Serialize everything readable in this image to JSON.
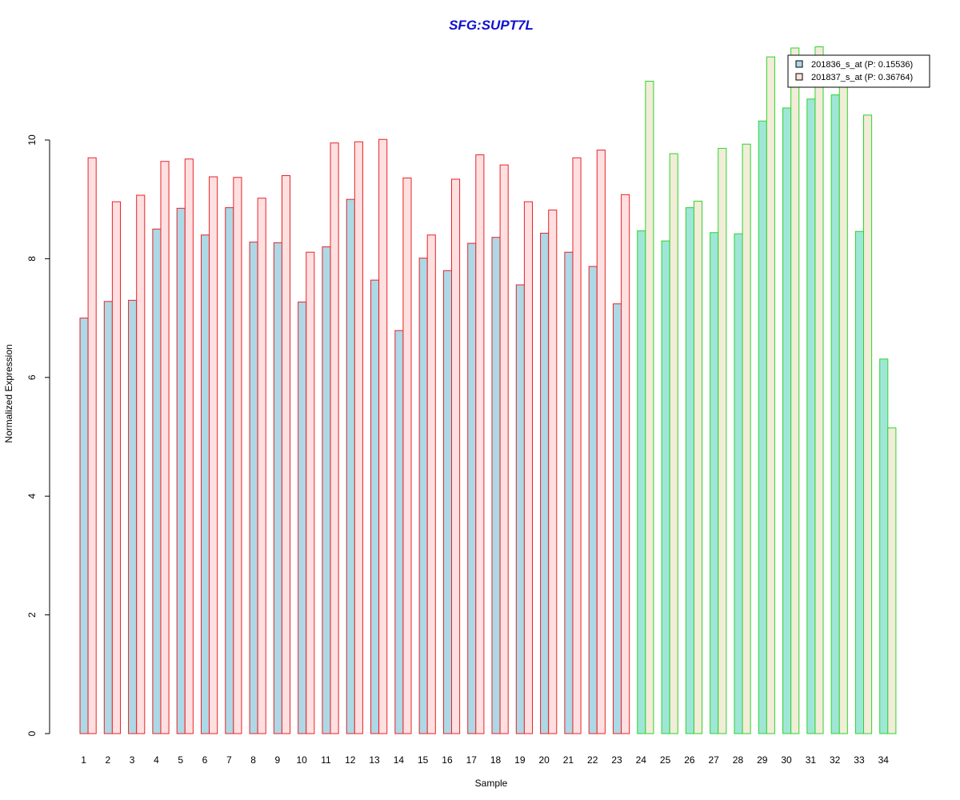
{
  "chart_data": {
    "type": "bar",
    "title": "SFG:SUPT7L",
    "xlabel": "Sample",
    "ylabel": "Normalized Expression",
    "ylim": [
      0,
      11.6
    ],
    "yticks": [
      0,
      2,
      4,
      6,
      8,
      10
    ],
    "grid": false,
    "legend_position": "top-right",
    "categories": [
      "1",
      "2",
      "3",
      "4",
      "5",
      "6",
      "7",
      "8",
      "9",
      "10",
      "11",
      "12",
      "13",
      "14",
      "15",
      "16",
      "17",
      "18",
      "19",
      "20",
      "21",
      "22",
      "23",
      "24",
      "25",
      "26",
      "27",
      "28",
      "29",
      "30",
      "31",
      "32",
      "33",
      "34"
    ],
    "groups": {
      "group1": {
        "samples_from": 1,
        "samples_to": 23,
        "border_color": "#e8232a",
        "fill_a": "#add8e6",
        "fill_b": "#ffe0e0"
      },
      "group2": {
        "samples_from": 24,
        "samples_to": 34,
        "border_color": "#2bd52b",
        "fill_a": "#a0e6d8",
        "fill_b": "#f2ecd8"
      }
    },
    "series": [
      {
        "name": "201836_s_at (P: 0.15536)",
        "values": [
          7.0,
          7.28,
          7.3,
          8.5,
          8.85,
          8.4,
          8.86,
          8.28,
          8.27,
          7.27,
          8.2,
          9.0,
          7.64,
          6.79,
          8.01,
          7.8,
          8.26,
          8.36,
          7.56,
          8.43,
          8.11,
          7.87,
          7.24,
          8.47,
          8.3,
          8.86,
          8.44,
          8.42,
          10.32,
          10.54,
          10.69,
          10.76,
          8.46,
          6.31
        ]
      },
      {
        "name": "201837_s_at (P: 0.36764)",
        "values": [
          9.7,
          8.96,
          9.07,
          9.64,
          9.68,
          9.38,
          9.37,
          9.02,
          9.4,
          8.11,
          9.95,
          9.97,
          10.01,
          9.36,
          8.4,
          9.34,
          9.75,
          9.58,
          8.96,
          8.82,
          9.7,
          9.83,
          9.08,
          10.99,
          9.77,
          8.97,
          9.86,
          9.93,
          11.4,
          11.55,
          11.57,
          11.3,
          10.42,
          5.15
        ]
      }
    ]
  }
}
